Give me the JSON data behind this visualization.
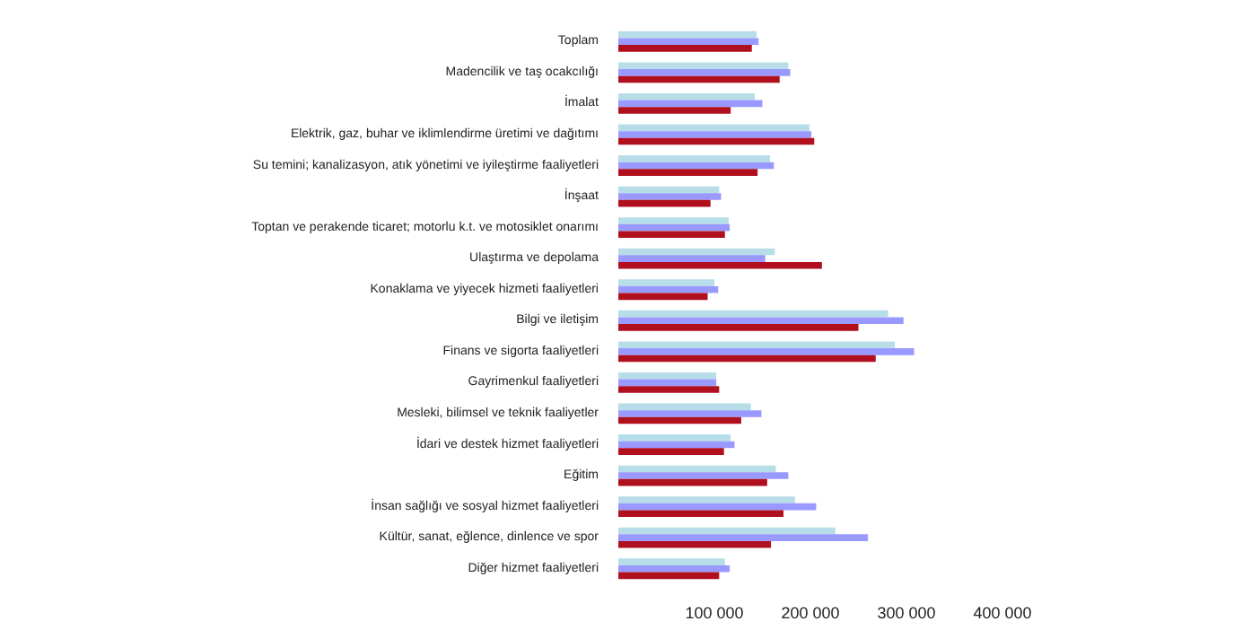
{
  "chart_data": {
    "type": "bar",
    "orientation": "horizontal",
    "categories": [
      "Toplam",
      "Madencilik ve taş ocakcılığı",
      "İmalat",
      "Elektrik, gaz, buhar ve iklimlendirme üretimi ve dağıtımı",
      "Su temini; kanalizasyon, atık yönetimi ve iyileştirme faaliyetleri",
      "İnşaat",
      "Toptan ve perakende ticaret; motorlu k.t. ve motosiklet onarımı",
      "Ulaştırma ve depolama",
      "Konaklama ve yiyecek hizmeti faaliyetleri",
      "Bilgi ve iletişim",
      "Finans ve sigorta faaliyetleri",
      "Gayrimenkul faaliyetleri",
      "Mesleki, bilimsel ve teknik faaliyetler",
      "İdari ve destek hizmet faaliyetleri",
      "Eğitim",
      "İnsan sağlığı ve sosyal hizmet faaliyetleri",
      "Kültür, sanat, eğlence, dinlence ve spor",
      "Diğer hizmet faaliyetleri"
    ],
    "series": [
      {
        "color": "#b7dde8",
        "values": [
          144000,
          177000,
          142000,
          199000,
          158000,
          105000,
          115000,
          163000,
          100000,
          281000,
          288000,
          102000,
          138000,
          117000,
          164000,
          184000,
          226000,
          111000
        ]
      },
      {
        "color": "#9999ff",
        "values": [
          146000,
          179000,
          150000,
          201000,
          162000,
          107000,
          116000,
          153000,
          104000,
          297000,
          308000,
          102000,
          149000,
          121000,
          177000,
          206000,
          260000,
          116000
        ]
      },
      {
        "color": "#b0101e",
        "values": [
          139000,
          168000,
          117000,
          204000,
          145000,
          96000,
          111000,
          212000,
          93000,
          250000,
          268000,
          105000,
          128000,
          110000,
          155000,
          172000,
          159000,
          105000
        ]
      }
    ],
    "xlim": [
      0,
      400000
    ],
    "xticks": [
      {
        "value": 100000,
        "label": "100 000"
      },
      {
        "value": 200000,
        "label": "200 000"
      },
      {
        "value": 300000,
        "label": "300 000"
      },
      {
        "value": 400000,
        "label": "400 000"
      }
    ],
    "grid": false
  }
}
